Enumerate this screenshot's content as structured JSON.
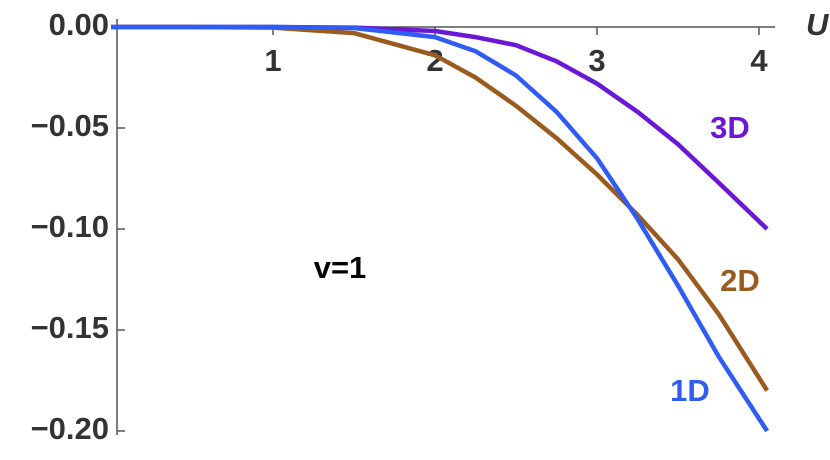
{
  "chart_data": {
    "type": "line",
    "x_label": "U",
    "annotations": [
      "v=1"
    ],
    "x": [
      0,
      0.5,
      1,
      1.5,
      2,
      2.25,
      2.5,
      2.75,
      3,
      3.25,
      3.5,
      3.75,
      4.05
    ],
    "series": [
      {
        "name": "3D",
        "color": "#6a17d6",
        "values": [
          0,
          0,
          0,
          -0.0003,
          -0.002,
          -0.005,
          -0.009,
          -0.017,
          -0.028,
          -0.042,
          -0.058,
          -0.077,
          -0.1
        ]
      },
      {
        "name": "2D",
        "color": "#9a5b1f",
        "values": [
          0,
          0,
          -0.0003,
          -0.003,
          -0.014,
          -0.025,
          -0.039,
          -0.055,
          -0.073,
          -0.093,
          -0.115,
          -0.142,
          -0.18
        ]
      },
      {
        "name": "1D",
        "color": "#2f5cf5",
        "values": [
          0,
          0,
          0,
          -0.0005,
          -0.005,
          -0.012,
          -0.024,
          -0.042,
          -0.065,
          -0.095,
          -0.128,
          -0.163,
          -0.2
        ]
      }
    ],
    "xlim": [
      0,
      4.05
    ],
    "ylim": [
      -0.2,
      0
    ],
    "xticks": [
      1,
      2,
      3,
      4
    ],
    "yticks": [
      {
        "value": 0,
        "label": "0.00"
      },
      {
        "value": -0.05,
        "label": "−0.05"
      },
      {
        "value": -0.1,
        "label": "−0.10"
      },
      {
        "value": -0.15,
        "label": "−0.15"
      },
      {
        "value": -0.2,
        "label": "−0.20"
      }
    ]
  }
}
